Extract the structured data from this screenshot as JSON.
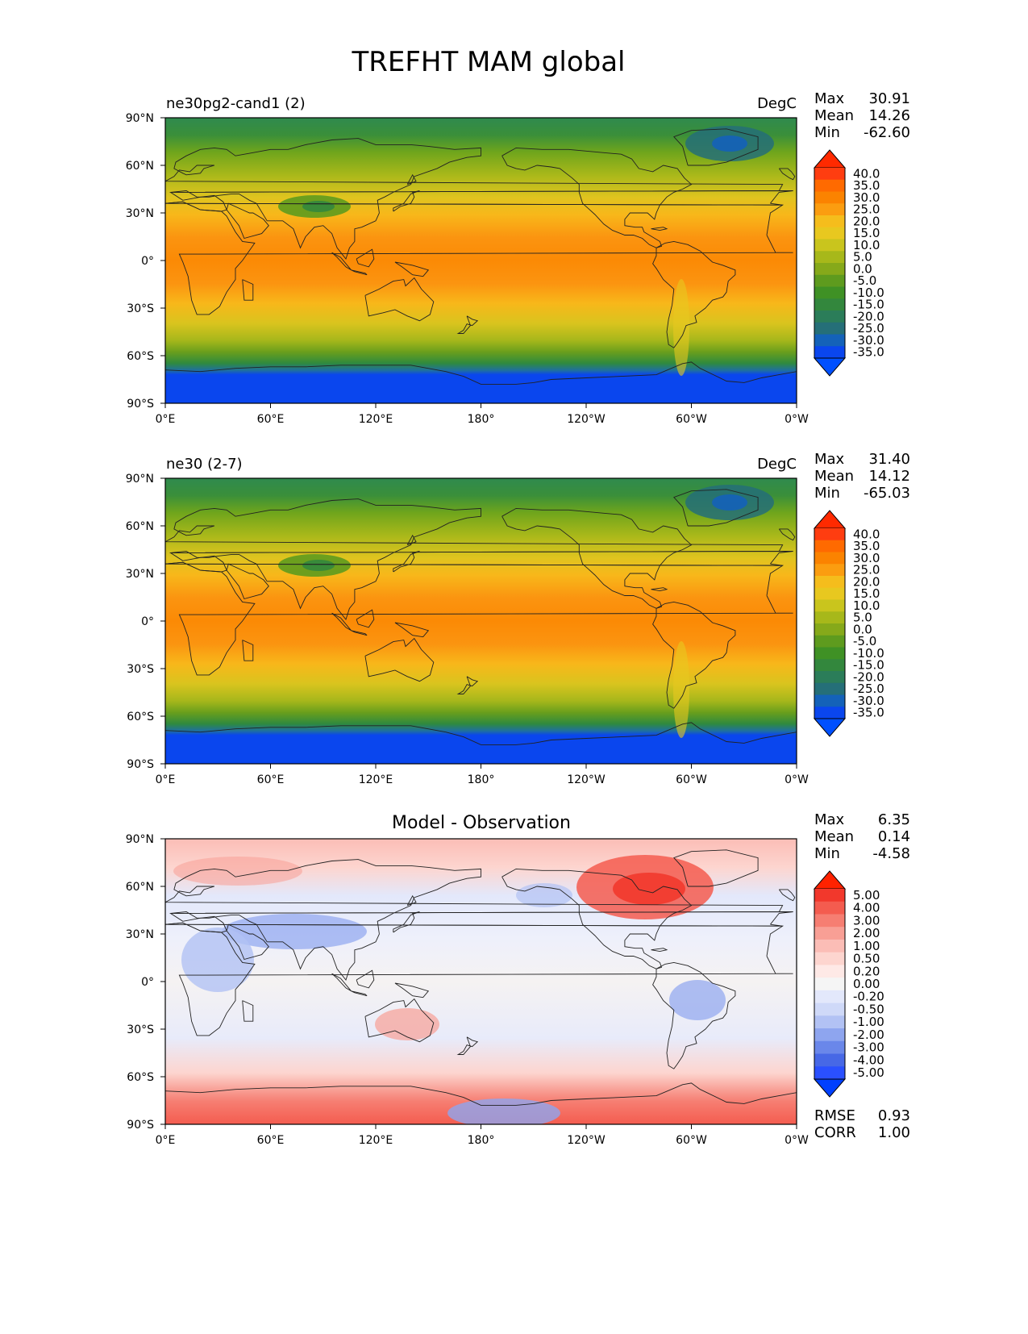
{
  "figure_title": "TREFHT MAM global",
  "panels": [
    {
      "title": "ne30pg2-cand1 (2)",
      "units": "DegC",
      "stats": [
        {
          "label": "Max",
          "value": "30.91"
        },
        {
          "label": "Mean",
          "value": "14.26"
        },
        {
          "label": "Min",
          "value": "-62.60"
        }
      ],
      "colorbar": {
        "labels": [
          "40.0",
          "35.0",
          "30.0",
          "25.0",
          "20.0",
          "15.0",
          "10.0",
          "5.0",
          "0.0",
          "-5.0",
          "-10.0",
          "-15.0",
          "-20.0",
          "-25.0",
          "-30.0",
          "-35.0"
        ],
        "colors": [
          "#ff3d10",
          "#ff6a00",
          "#fb8300",
          "#fb9d10",
          "#f5bd1c",
          "#e8c81f",
          "#c9c51d",
          "#a7b81a",
          "#86a91a",
          "#5e9b1e",
          "#3f9125",
          "#33873d",
          "#2b7d59",
          "#256f78",
          "#1462b9",
          "#0a46ee"
        ],
        "over_color": "#ff2a00",
        "under_color": "#0050ff"
      }
    },
    {
      "title": "ne30 (2-7)",
      "units": "DegC",
      "stats": [
        {
          "label": "Max",
          "value": "31.40"
        },
        {
          "label": "Mean",
          "value": "14.12"
        },
        {
          "label": "Min",
          "value": "-65.03"
        }
      ],
      "colorbar": {
        "labels": [
          "40.0",
          "35.0",
          "30.0",
          "25.0",
          "20.0",
          "15.0",
          "10.0",
          "5.0",
          "0.0",
          "-5.0",
          "-10.0",
          "-15.0",
          "-20.0",
          "-25.0",
          "-30.0",
          "-35.0"
        ],
        "colors": [
          "#ff3d10",
          "#ff6a00",
          "#fb8300",
          "#fb9d10",
          "#f5bd1c",
          "#e8c81f",
          "#c9c51d",
          "#a7b81a",
          "#86a91a",
          "#5e9b1e",
          "#3f9125",
          "#33873d",
          "#2b7d59",
          "#256f78",
          "#1462b9",
          "#0a46ee"
        ],
        "over_color": "#ff2a00",
        "under_color": "#0050ff"
      }
    },
    {
      "title": "Model - Observation",
      "units": "",
      "stats": [
        {
          "label": "Max",
          "value": "6.35"
        },
        {
          "label": "Mean",
          "value": "0.14"
        },
        {
          "label": "Min",
          "value": "-4.58"
        }
      ],
      "extra_stats": [
        {
          "label": "RMSE",
          "value": "0.93"
        },
        {
          "label": "CORR",
          "value": "1.00"
        }
      ],
      "colorbar": {
        "labels": [
          "5.00",
          "4.00",
          "3.00",
          "2.00",
          "1.00",
          "0.50",
          "0.20",
          "0.00",
          "-0.20",
          "-0.50",
          "-1.00",
          "-2.00",
          "-3.00",
          "-4.00",
          "-5.00"
        ],
        "colors": [
          "#f2382c",
          "#f45c4f",
          "#f67e72",
          "#f89f95",
          "#fbbdb6",
          "#fdd5cf",
          "#fee9e6",
          "#f5f5f5",
          "#e3e8fb",
          "#cfd9f8",
          "#b2c2f4",
          "#8ea5ef",
          "#6a87ea",
          "#4768e6",
          "#2a50ff"
        ],
        "over_color": "#ff2200",
        "under_color": "#0040ff"
      }
    }
  ],
  "axes": {
    "xticks": [
      "0°E",
      "60°E",
      "120°E",
      "180°",
      "120°W",
      "60°W",
      "0°W"
    ],
    "yticks": [
      "90°N",
      "60°N",
      "30°N",
      "0°",
      "30°S",
      "60°S",
      "90°S"
    ]
  },
  "chart_data": [
    {
      "type": "heatmap",
      "title": "ne30pg2-cand1 (2)",
      "variable": "TREFHT",
      "season": "MAM",
      "units": "DegC",
      "xlim": [
        0,
        360
      ],
      "ylim": [
        -90,
        90
      ],
      "max": 30.91,
      "mean": 14.26,
      "min": -62.6,
      "contour_levels": [
        -35,
        -30,
        -25,
        -20,
        -15,
        -10,
        -5,
        0,
        5,
        10,
        15,
        20,
        25,
        30,
        35,
        40
      ]
    },
    {
      "type": "heatmap",
      "title": "ne30 (2-7)",
      "variable": "TREFHT",
      "season": "MAM",
      "units": "DegC",
      "xlim": [
        0,
        360
      ],
      "ylim": [
        -90,
        90
      ],
      "max": 31.4,
      "mean": 14.12,
      "min": -65.03,
      "contour_levels": [
        -35,
        -30,
        -25,
        -20,
        -15,
        -10,
        -5,
        0,
        5,
        10,
        15,
        20,
        25,
        30,
        35,
        40
      ]
    },
    {
      "type": "heatmap",
      "title": "Model - Observation",
      "xlim": [
        0,
        360
      ],
      "ylim": [
        -90,
        90
      ],
      "max": 6.35,
      "mean": 0.14,
      "min": -4.58,
      "rmse": 0.93,
      "corr": 1.0,
      "contour_levels": [
        -5.0,
        -4.0,
        -3.0,
        -2.0,
        -1.0,
        -0.5,
        -0.2,
        0.0,
        0.2,
        0.5,
        1.0,
        2.0,
        3.0,
        4.0,
        5.0
      ]
    }
  ]
}
